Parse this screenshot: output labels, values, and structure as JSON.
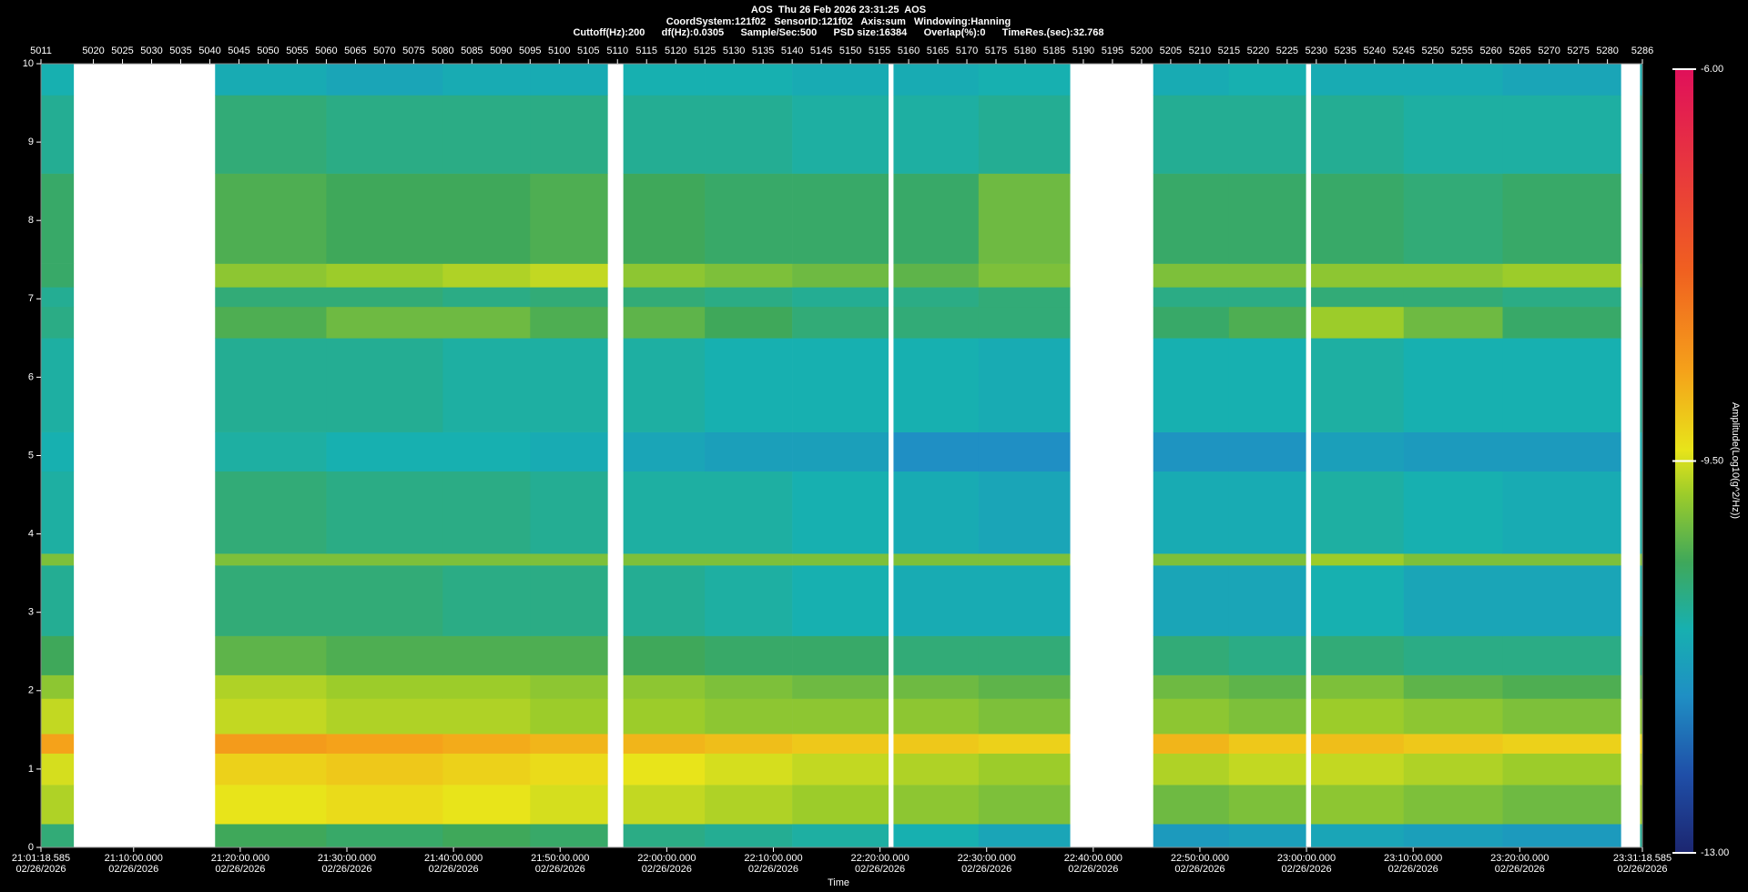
{
  "chart_data": {
    "type": "heatmap",
    "title": "AOS  Thu 26 Feb 2026 23:31:25  AOS",
    "subtitle": [
      "CoordSystem:121f02   SensorID:121f02   Axis:sum   Windowing:Hanning",
      "Cuttoff(Hz):200      df(Hz):0.0305      Sample/Sec:500      PSD size:16384      Overlap(%):0      TimeRes.(sec):32.768"
    ],
    "x_label": "Time",
    "z_label": "Amplitude(Log10(g^2/Hz))",
    "xlim": [
      5011,
      5286
    ],
    "xticks": [
      5011,
      5020,
      5025,
      5030,
      5035,
      5040,
      5045,
      5050,
      5055,
      5060,
      5065,
      5070,
      5075,
      5080,
      5085,
      5090,
      5095,
      5100,
      5105,
      5110,
      5115,
      5120,
      5125,
      5130,
      5135,
      5140,
      5145,
      5150,
      5155,
      5160,
      5165,
      5170,
      5175,
      5180,
      5185,
      5190,
      5195,
      5200,
      5205,
      5210,
      5215,
      5220,
      5225,
      5230,
      5235,
      5240,
      5245,
      5250,
      5255,
      5260,
      5265,
      5270,
      5275,
      5280,
      5286
    ],
    "x2ticks": [
      {
        "value": 5011,
        "label": "21:01:18.585\n02/26/2026"
      },
      {
        "value": 5026.91,
        "label": "21:10:00.000\n02/26/2026"
      },
      {
        "value": 5045.22,
        "label": "21:20:00.000\n02/26/2026"
      },
      {
        "value": 5063.53,
        "label": "21:30:00.000\n02/26/2026"
      },
      {
        "value": 5081.84,
        "label": "21:40:00.000\n02/26/2026"
      },
      {
        "value": 5100.15,
        "label": "21:50:00.000\n02/26/2026"
      },
      {
        "value": 5118.46,
        "label": "22:00:00.000\n02/26/2026"
      },
      {
        "value": 5136.77,
        "label": "22:10:00.000\n02/26/2026"
      },
      {
        "value": 5155.08,
        "label": "22:20:00.000\n02/26/2026"
      },
      {
        "value": 5173.39,
        "label": "22:30:00.000\n02/26/2026"
      },
      {
        "value": 5191.7,
        "label": "22:40:00.000\n02/26/2026"
      },
      {
        "value": 5210.01,
        "label": "22:50:00.000\n02/26/2026"
      },
      {
        "value": 5228.32,
        "label": "23:00:00.000\n02/26/2026"
      },
      {
        "value": 5246.63,
        "label": "23:10:00.000\n02/26/2026"
      },
      {
        "value": 5264.94,
        "label": "23:20:00.000\n02/26/2026"
      },
      {
        "value": 5286,
        "label": "23:31:18.585\n02/26/2026"
      }
    ],
    "ylim": [
      0,
      10
    ],
    "yticks": [
      0,
      1,
      2,
      3,
      4,
      5,
      6,
      7,
      8,
      9,
      10
    ],
    "zlim": [
      -13,
      -6
    ],
    "zticks": [
      {
        "value": -13,
        "label": "-13.00"
      },
      {
        "value": -9.5,
        "label": "-9.50"
      },
      {
        "value": -6,
        "label": "-6.00"
      }
    ],
    "colorscale": [
      {
        "value": -13,
        "color": "#1c2670"
      },
      {
        "value": -12.3,
        "color": "#1f4fa8"
      },
      {
        "value": -11.6,
        "color": "#1f8fc4"
      },
      {
        "value": -11.0,
        "color": "#17b0b0"
      },
      {
        "value": -10.4,
        "color": "#3fa85a"
      },
      {
        "value": -9.8,
        "color": "#9ccc2a"
      },
      {
        "value": -9.4,
        "color": "#e8e41a"
      },
      {
        "value": -8.7,
        "color": "#f5a21a"
      },
      {
        "value": -7.8,
        "color": "#f06020"
      },
      {
        "value": -6,
        "color": "#e0105a"
      }
    ],
    "xbins": [
      5011,
      5016.6,
      5040.9,
      5060,
      5080,
      5095,
      5108.3,
      5111,
      5125,
      5140,
      5156.5,
      5157.4,
      5172,
      5187.7,
      5202,
      5215,
      5228.2,
      5229.1,
      5245,
      5262,
      5282.3,
      5285.6,
      5286
    ],
    "ybins": [
      0,
      0.3,
      0.8,
      1.2,
      1.45,
      1.9,
      2.2,
      2.7,
      3.6,
      3.75,
      4.8,
      5.3,
      6.5,
      6.9,
      7.15,
      7.45,
      8.6,
      9.6,
      10
    ],
    "z": [
      [
        -10.6,
        null,
        -10.4,
        -10.5,
        -10.4,
        -10.5,
        null,
        -10.7,
        -10.8,
        -10.9,
        null,
        -11.0,
        -11.2,
        null,
        -11.4,
        -11.3,
        null,
        -11.2,
        -11.3,
        -11.4,
        null,
        -10.8
      ],
      [
        -9.7,
        null,
        -9.4,
        -9.3,
        -9.4,
        -9.5,
        null,
        -9.6,
        -9.7,
        -9.8,
        null,
        -9.9,
        -10.0,
        null,
        -10.1,
        -10.0,
        null,
        -9.9,
        -10.0,
        -10.1,
        null,
        -9.8
      ],
      [
        -9.5,
        null,
        -9.2,
        -9.1,
        -9.2,
        -9.3,
        null,
        -9.4,
        -9.5,
        -9.6,
        null,
        -9.7,
        -9.8,
        null,
        -9.7,
        -9.6,
        null,
        -9.6,
        -9.7,
        -9.8,
        null,
        -9.6
      ],
      [
        -8.7,
        null,
        -8.6,
        -8.7,
        -8.8,
        -8.9,
        null,
        -8.9,
        -9.0,
        -9.1,
        null,
        -9.1,
        -9.2,
        null,
        -8.9,
        -9.1,
        null,
        -9.0,
        -9.1,
        -9.2,
        null,
        -9.3
      ],
      [
        -9.6,
        null,
        -9.6,
        -9.7,
        -9.7,
        -9.8,
        null,
        -9.8,
        -9.9,
        -9.9,
        null,
        -9.9,
        -10.0,
        null,
        -9.9,
        -10.0,
        null,
        -9.8,
        -9.9,
        -10.0,
        null,
        -9.9
      ],
      [
        -9.9,
        null,
        -9.7,
        -9.8,
        -9.8,
        -9.9,
        null,
        -9.9,
        -10.0,
        -10.1,
        null,
        -10.1,
        -10.2,
        null,
        -10.1,
        -10.2,
        null,
        -10.0,
        -10.2,
        -10.3,
        null,
        -10.2
      ],
      [
        -10.4,
        null,
        -10.2,
        -10.3,
        -10.3,
        -10.3,
        null,
        -10.4,
        -10.5,
        -10.5,
        null,
        -10.6,
        -10.6,
        null,
        -10.6,
        -10.7,
        null,
        -10.6,
        -10.7,
        -10.7,
        null,
        -10.6
      ],
      [
        -10.8,
        null,
        -10.6,
        -10.6,
        -10.7,
        -10.7,
        null,
        -10.8,
        -10.9,
        -11.0,
        null,
        -11.1,
        -11.1,
        null,
        -11.2,
        -11.2,
        null,
        -11.0,
        -11.2,
        -11.2,
        null,
        -10.9
      ],
      [
        -10.0,
        null,
        -10.0,
        -10.0,
        -10.0,
        -10.0,
        null,
        -10.0,
        -10.0,
        -10.0,
        null,
        -10.0,
        -10.0,
        null,
        -10.0,
        -10.0,
        null,
        -9.8,
        -10.0,
        -10.0,
        null,
        -10.0
      ],
      [
        -10.9,
        null,
        -10.6,
        -10.7,
        -10.7,
        -10.8,
        null,
        -10.9,
        -10.9,
        -11.0,
        null,
        -11.1,
        -11.2,
        null,
        -11.1,
        -11.1,
        null,
        -10.9,
        -11.0,
        -11.1,
        null,
        -10.9
      ],
      [
        -11.0,
        null,
        -10.9,
        -11.0,
        -11.0,
        -11.1,
        null,
        -11.2,
        -11.3,
        -11.3,
        null,
        -11.6,
        -11.6,
        null,
        -11.5,
        -11.5,
        null,
        -11.3,
        -11.4,
        -11.4,
        null,
        -11.0
      ],
      [
        -10.9,
        null,
        -10.8,
        -10.8,
        -10.9,
        -10.9,
        null,
        -10.9,
        -11.0,
        -11.0,
        null,
        -11.0,
        -11.1,
        null,
        -11.0,
        -11.0,
        null,
        -10.9,
        -11.0,
        -11.0,
        null,
        -10.8
      ],
      [
        -10.7,
        null,
        -10.3,
        -10.1,
        -10.1,
        -10.3,
        null,
        -10.2,
        -10.4,
        -10.6,
        null,
        -10.6,
        -10.6,
        null,
        -10.5,
        -10.3,
        null,
        -9.8,
        -10.1,
        -10.5,
        null,
        -10.6
      ],
      [
        -10.8,
        null,
        -10.6,
        -10.6,
        -10.7,
        -10.6,
        null,
        -10.6,
        -10.7,
        -10.8,
        null,
        -10.7,
        -10.6,
        null,
        -10.7,
        -10.7,
        null,
        -10.6,
        -10.6,
        -10.7,
        null,
        -10.7
      ],
      [
        -10.5,
        null,
        -9.9,
        -9.8,
        -9.7,
        -9.6,
        null,
        -9.9,
        -10.0,
        -10.1,
        null,
        -10.2,
        -10.0,
        null,
        -10.0,
        -10.0,
        null,
        -9.9,
        -9.9,
        -9.8,
        null,
        -10.3
      ],
      [
        -10.5,
        null,
        -10.3,
        -10.4,
        -10.4,
        -10.3,
        null,
        -10.4,
        -10.5,
        -10.5,
        null,
        -10.5,
        -10.1,
        null,
        -10.5,
        -10.5,
        null,
        -10.5,
        -10.6,
        -10.5,
        null,
        -10.4
      ],
      [
        -10.8,
        null,
        -10.6,
        -10.7,
        -10.7,
        -10.7,
        null,
        -10.8,
        -10.8,
        -10.9,
        null,
        -10.9,
        -10.8,
        null,
        -10.8,
        -10.8,
        null,
        -10.8,
        -10.9,
        -10.9,
        null,
        -10.7
      ],
      [
        -11.0,
        null,
        -11.1,
        -11.2,
        -11.1,
        -11.1,
        null,
        -11.0,
        -11.0,
        -11.1,
        null,
        -11.1,
        -11.0,
        null,
        -11.1,
        -11.0,
        null,
        -11.1,
        -11.1,
        -11.2,
        null,
        -11.0
      ]
    ]
  }
}
